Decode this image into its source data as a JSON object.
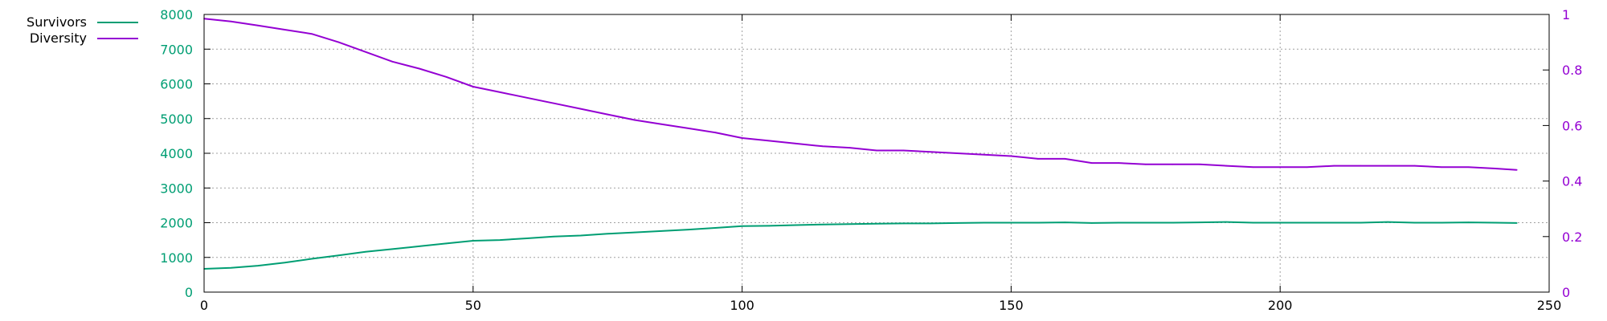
{
  "colors": {
    "survivors": "#009e73",
    "diversity": "#9400d3",
    "axis": "#000000",
    "grid": "#a0a0a0",
    "text": "#000000"
  },
  "legend": {
    "placement": "top-left",
    "entries": [
      {
        "key": "survivors",
        "label": "Survivors"
      },
      {
        "key": "diversity",
        "label": "Diversity"
      }
    ]
  },
  "chart_data": {
    "type": "line",
    "grid": true,
    "x_axis": {
      "range": [
        0,
        250
      ],
      "ticks": [
        0,
        50,
        100,
        150,
        200,
        250
      ],
      "tick_labels": [
        "0",
        "50",
        "100",
        "150",
        "200",
        "250"
      ]
    },
    "y_axis_left": {
      "range": [
        0,
        8000
      ],
      "ticks": [
        0,
        1000,
        2000,
        3000,
        4000,
        5000,
        6000,
        7000,
        8000
      ],
      "tick_labels": [
        "0",
        "1000",
        "2000",
        "3000",
        "4000",
        "5000",
        "6000",
        "7000",
        "8000"
      ],
      "color": "#009e73"
    },
    "y_axis_right": {
      "range": [
        0,
        1
      ],
      "ticks": [
        0,
        0.2,
        0.4,
        0.6,
        0.8,
        1
      ],
      "tick_labels": [
        "0",
        "0.2",
        "0.4",
        "0.6",
        "0.8",
        "1"
      ],
      "color": "#9400d3"
    },
    "series": [
      {
        "name": "Survivors",
        "axis": "left",
        "color": "#009e73",
        "x": [
          0,
          5,
          10,
          15,
          20,
          25,
          30,
          35,
          40,
          45,
          50,
          55,
          60,
          65,
          70,
          75,
          80,
          85,
          90,
          95,
          100,
          105,
          110,
          115,
          120,
          125,
          130,
          135,
          140,
          145,
          150,
          155,
          160,
          165,
          170,
          175,
          180,
          185,
          190,
          195,
          200,
          205,
          210,
          215,
          220,
          225,
          230,
          235,
          240,
          244
        ],
        "y": [
          670,
          700,
          760,
          850,
          960,
          1060,
          1160,
          1240,
          1320,
          1400,
          1480,
          1500,
          1550,
          1600,
          1630,
          1680,
          1720,
          1760,
          1800,
          1850,
          1900,
          1910,
          1930,
          1950,
          1960,
          1970,
          1980,
          1980,
          1990,
          2000,
          2000,
          2000,
          2010,
          1990,
          2000,
          2000,
          2000,
          2010,
          2020,
          2000,
          2000,
          2000,
          2000,
          2000,
          2020,
          2000,
          2000,
          2010,
          2000,
          1990
        ]
      },
      {
        "name": "Diversity",
        "axis": "right",
        "color": "#9400d3",
        "x": [
          0,
          5,
          10,
          15,
          20,
          25,
          30,
          35,
          40,
          45,
          50,
          55,
          60,
          65,
          70,
          75,
          80,
          85,
          90,
          95,
          100,
          105,
          110,
          115,
          120,
          125,
          130,
          135,
          140,
          145,
          150,
          155,
          160,
          165,
          170,
          175,
          180,
          185,
          190,
          195,
          200,
          205,
          210,
          215,
          220,
          225,
          230,
          235,
          240,
          244
        ],
        "y": [
          0.985,
          0.975,
          0.96,
          0.945,
          0.93,
          0.9,
          0.865,
          0.83,
          0.805,
          0.775,
          0.74,
          0.72,
          0.7,
          0.68,
          0.66,
          0.64,
          0.62,
          0.605,
          0.59,
          0.575,
          0.555,
          0.545,
          0.535,
          0.525,
          0.52,
          0.51,
          0.51,
          0.505,
          0.5,
          0.495,
          0.49,
          0.48,
          0.48,
          0.465,
          0.465,
          0.46,
          0.46,
          0.46,
          0.455,
          0.45,
          0.45,
          0.45,
          0.455,
          0.455,
          0.455,
          0.455,
          0.45,
          0.45,
          0.445,
          0.44
        ]
      }
    ]
  }
}
